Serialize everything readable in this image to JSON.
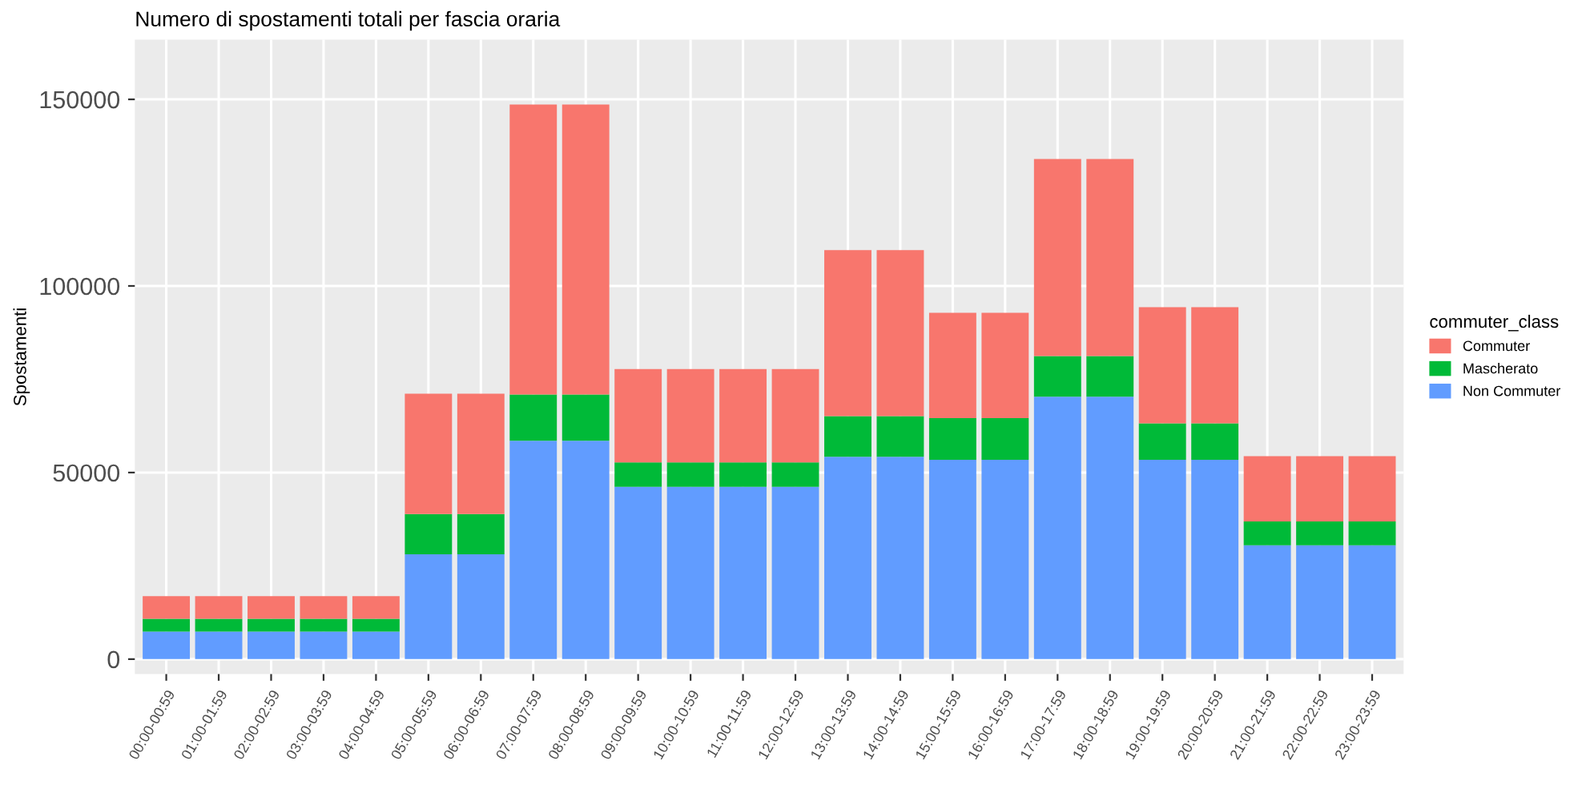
{
  "chart_data": {
    "type": "bar",
    "title": "Numero di spostamenti totali per fascia oraria",
    "ylabel": "Spostamenti",
    "legend_title": "commuter_class",
    "categories": [
      "00:00-00:59",
      "01:00-01:59",
      "02:00-02:59",
      "03:00-03:59",
      "04:00-04:59",
      "05:00-05:59",
      "06:00-06:59",
      "07:00-07:59",
      "08:00-08:59",
      "09:00-09:59",
      "10:00-10:59",
      "11:00-11:59",
      "12:00-12:59",
      "13:00-13:59",
      "14:00-14:59",
      "15:00-15:59",
      "16:00-16:59",
      "17:00-17:59",
      "18:00-18:59",
      "19:00-19:59",
      "20:00-20:59",
      "21:00-21:59",
      "22:00-22:59",
      "23:00-23:59"
    ],
    "series": [
      {
        "name": "Non Commuter",
        "color": "#619cff",
        "values": [
          7400,
          7400,
          7400,
          7400,
          7400,
          28100,
          28100,
          58500,
          58500,
          46200,
          46200,
          46200,
          46200,
          54200,
          54200,
          53400,
          53400,
          70300,
          70300,
          53400,
          53400,
          30500,
          30500,
          30500
        ]
      },
      {
        "name": "Mascherato",
        "color": "#00ba38",
        "values": [
          3400,
          3400,
          3400,
          3400,
          3400,
          10800,
          10800,
          12400,
          12400,
          6500,
          6500,
          6500,
          6500,
          10900,
          10900,
          11200,
          11200,
          10900,
          10900,
          9800,
          9800,
          6400,
          6400,
          6400
        ]
      },
      {
        "name": "Commuter",
        "color": "#f8766d",
        "values": [
          6100,
          6100,
          6100,
          6100,
          6100,
          32200,
          32200,
          77700,
          77700,
          25000,
          25000,
          25000,
          25000,
          44500,
          44500,
          28200,
          28200,
          52800,
          52800,
          31100,
          31100,
          17500,
          17500,
          17500
        ]
      }
    ],
    "stacked": true,
    "ylim": [
      -4000,
      166000
    ],
    "yticks": [
      0,
      50000,
      100000,
      150000
    ],
    "grid": true,
    "legend": "right"
  }
}
